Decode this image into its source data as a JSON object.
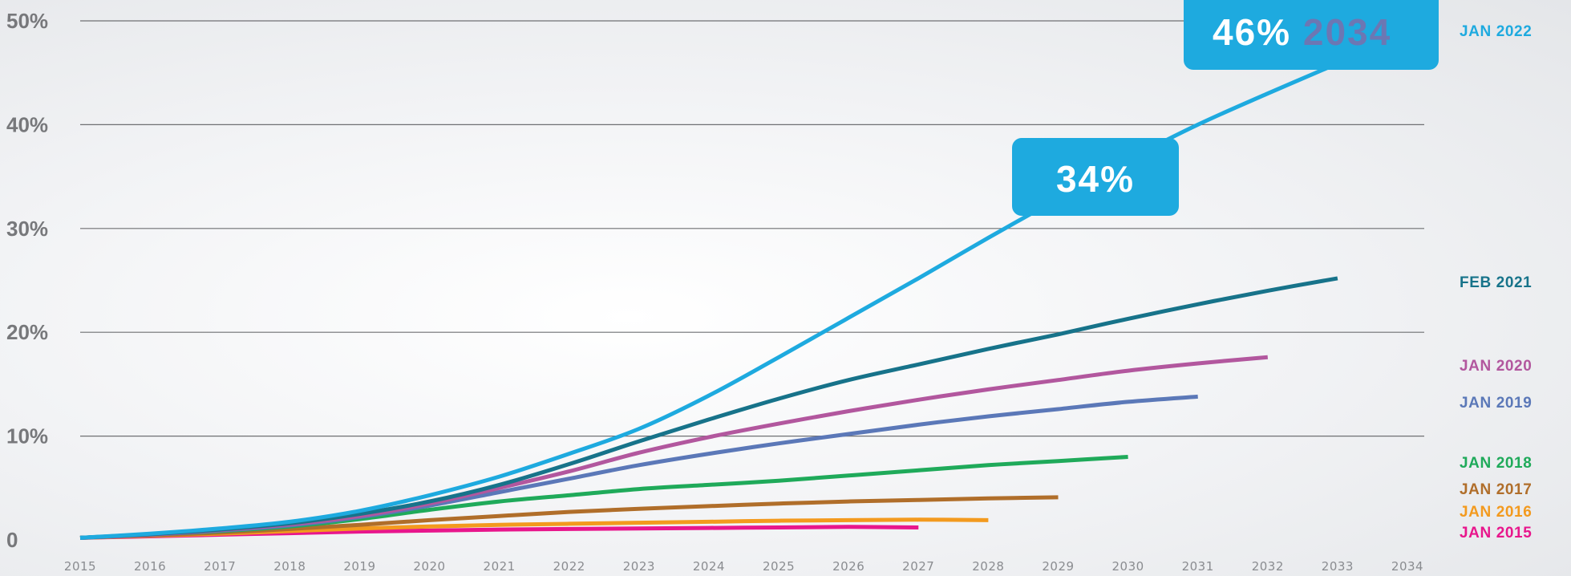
{
  "chart_data": {
    "type": "line",
    "ylim": [
      0,
      50
    ],
    "xlim": [
      2015,
      2034
    ],
    "y_ticks": [
      "0",
      "10%",
      "20%",
      "30%",
      "40%",
      "50%"
    ],
    "y_tick_values": [
      0,
      10,
      20,
      30,
      40,
      50
    ],
    "x_ticks": [
      "2015",
      "2016",
      "2017",
      "2018",
      "2019",
      "2020",
      "2021",
      "2022",
      "2023",
      "2024",
      "2025",
      "2026",
      "2027",
      "2028",
      "2029",
      "2030",
      "2031",
      "2032",
      "2033",
      "2034"
    ],
    "x_tick_values": [
      2015,
      2016,
      2017,
      2018,
      2019,
      2020,
      2021,
      2022,
      2023,
      2024,
      2025,
      2026,
      2027,
      2028,
      2029,
      2030,
      2031,
      2032,
      2033,
      2034
    ],
    "grid": true,
    "legend_position": "right",
    "series": [
      {
        "name": "JAN 2015",
        "color": "#e8168c",
        "x": [
          2015,
          2016,
          2017,
          2018,
          2019,
          2020,
          2021,
          2022,
          2023,
          2024,
          2025,
          2026,
          2027
        ],
        "y": [
          0.2,
          0.35,
          0.5,
          0.65,
          0.8,
          0.9,
          1.0,
          1.05,
          1.1,
          1.15,
          1.2,
          1.25,
          1.2
        ]
      },
      {
        "name": "JAN 2016",
        "color": "#f39a1e",
        "x": [
          2015,
          2016,
          2017,
          2018,
          2019,
          2020,
          2021,
          2022,
          2023,
          2024,
          2025,
          2026,
          2027,
          2028
        ],
        "y": [
          0.2,
          0.4,
          0.6,
          0.85,
          1.1,
          1.3,
          1.45,
          1.55,
          1.65,
          1.75,
          1.85,
          1.9,
          1.95,
          1.9
        ]
      },
      {
        "name": "JAN 2017",
        "color": "#b06e2a",
        "x": [
          2015,
          2016,
          2017,
          2018,
          2019,
          2020,
          2021,
          2022,
          2023,
          2024,
          2025,
          2026,
          2027,
          2028,
          2029
        ],
        "y": [
          0.2,
          0.45,
          0.7,
          1.05,
          1.45,
          1.9,
          2.3,
          2.7,
          3.0,
          3.25,
          3.5,
          3.7,
          3.85,
          4.0,
          4.1
        ]
      },
      {
        "name": "JAN 2018",
        "color": "#1faa5a",
        "x": [
          2015,
          2016,
          2017,
          2018,
          2019,
          2020,
          2021,
          2022,
          2023,
          2024,
          2025,
          2026,
          2027,
          2028,
          2029,
          2030
        ],
        "y": [
          0.2,
          0.5,
          0.85,
          1.3,
          2.0,
          2.9,
          3.7,
          4.3,
          4.9,
          5.3,
          5.7,
          6.2,
          6.7,
          7.2,
          7.6,
          8.0
        ]
      },
      {
        "name": "JAN 2019",
        "color": "#5b78b8",
        "x": [
          2015,
          2016,
          2017,
          2018,
          2019,
          2020,
          2021,
          2022,
          2023,
          2024,
          2025,
          2026,
          2027,
          2028,
          2029,
          2030,
          2031
        ],
        "y": [
          0.2,
          0.5,
          0.9,
          1.4,
          2.2,
          3.3,
          4.6,
          5.9,
          7.2,
          8.3,
          9.3,
          10.2,
          11.1,
          11.9,
          12.6,
          13.3,
          13.8
        ]
      },
      {
        "name": "JAN 2020",
        "color": "#b2579e",
        "x": [
          2015,
          2016,
          2017,
          2018,
          2019,
          2020,
          2021,
          2022,
          2023,
          2024,
          2025,
          2026,
          2027,
          2028,
          2029,
          2030,
          2031,
          2032
        ],
        "y": [
          0.2,
          0.5,
          0.95,
          1.5,
          2.3,
          3.5,
          5.0,
          6.6,
          8.4,
          9.9,
          11.2,
          12.4,
          13.5,
          14.5,
          15.4,
          16.3,
          17.0,
          17.6
        ]
      },
      {
        "name": "FEB 2021",
        "color": "#17738a",
        "x": [
          2015,
          2016,
          2017,
          2018,
          2019,
          2020,
          2021,
          2022,
          2023,
          2024,
          2025,
          2026,
          2027,
          2028,
          2029,
          2030,
          2031,
          2032,
          2033
        ],
        "y": [
          0.2,
          0.55,
          1.0,
          1.6,
          2.5,
          3.7,
          5.3,
          7.3,
          9.5,
          11.6,
          13.6,
          15.4,
          16.9,
          18.4,
          19.8,
          21.3,
          22.7,
          24.0,
          25.2
        ]
      },
      {
        "name": "JAN 2022",
        "color": "#1eaadf",
        "x": [
          2015,
          2016,
          2017,
          2018,
          2019,
          2020,
          2021,
          2022,
          2023,
          2024,
          2025,
          2026,
          2027,
          2028,
          2029,
          2030,
          2031,
          2032,
          2033
        ],
        "y": [
          0.2,
          0.6,
          1.1,
          1.75,
          2.8,
          4.3,
          6.1,
          8.3,
          10.7,
          13.9,
          17.6,
          21.4,
          25.2,
          29.1,
          32.9,
          36.6,
          40.0,
          43.0,
          45.9
        ]
      }
    ],
    "annotations": [
      {
        "text": "34%",
        "x": 2029.7,
        "y": 34
      },
      {
        "text": "46%",
        "year_text": "2034",
        "x": 2033.2,
        "y": 46
      }
    ],
    "annotation_color": "#1eaadf",
    "annotation_year_color": "#6c77b3"
  }
}
